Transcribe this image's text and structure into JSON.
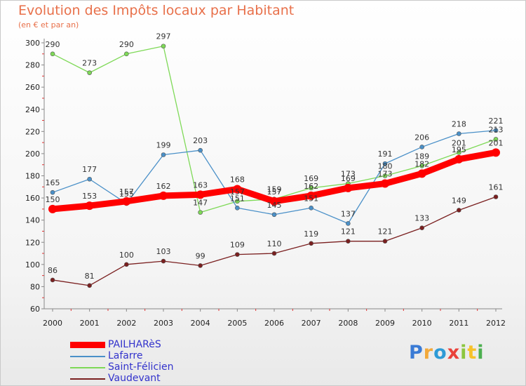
{
  "header": {
    "title": "Evolution des Impôts locaux par Habitant",
    "subtitle": "(en € et par an)"
  },
  "logo": {
    "text": "Proxiti",
    "colors": [
      "#3a7bd5",
      "#f2a93b",
      "#2e9bd6",
      "#e9413a",
      "#8cc63f",
      "#f7c22b",
      "#4caf50"
    ]
  },
  "chart_data": {
    "type": "line",
    "x": [
      2000,
      2001,
      2002,
      2003,
      2004,
      2005,
      2006,
      2007,
      2008,
      2009,
      2010,
      2011,
      2012
    ],
    "ylim": [
      60,
      300
    ],
    "yticks": [
      60,
      80,
      100,
      120,
      140,
      160,
      180,
      200,
      220,
      240,
      260,
      280,
      300
    ],
    "grid": false,
    "legend_position": "bottom-left",
    "series": [
      {
        "name": "PAILHARèS",
        "color": "#ff0000",
        "values": [
          150,
          153,
          157,
          162,
          163,
          168,
          157,
          162,
          169,
          173,
          182,
          195,
          201
        ]
      },
      {
        "name": "Lafarre",
        "color": "#4a90c8",
        "values": [
          165,
          177,
          155,
          199,
          203,
          151,
          145,
          151,
          137,
          191,
          206,
          218,
          221
        ]
      },
      {
        "name": "Saint-Félicien",
        "color": "#7ed957",
        "values": [
          290,
          273,
          290,
          297,
          147,
          157,
          159,
          169,
          173,
          180,
          189,
          201,
          213
        ]
      },
      {
        "name": "Vaudevant",
        "color": "#7a1f1f",
        "values": [
          86,
          81,
          100,
          103,
          99,
          109,
          110,
          119,
          121,
          121,
          133,
          149,
          161
        ]
      }
    ]
  }
}
